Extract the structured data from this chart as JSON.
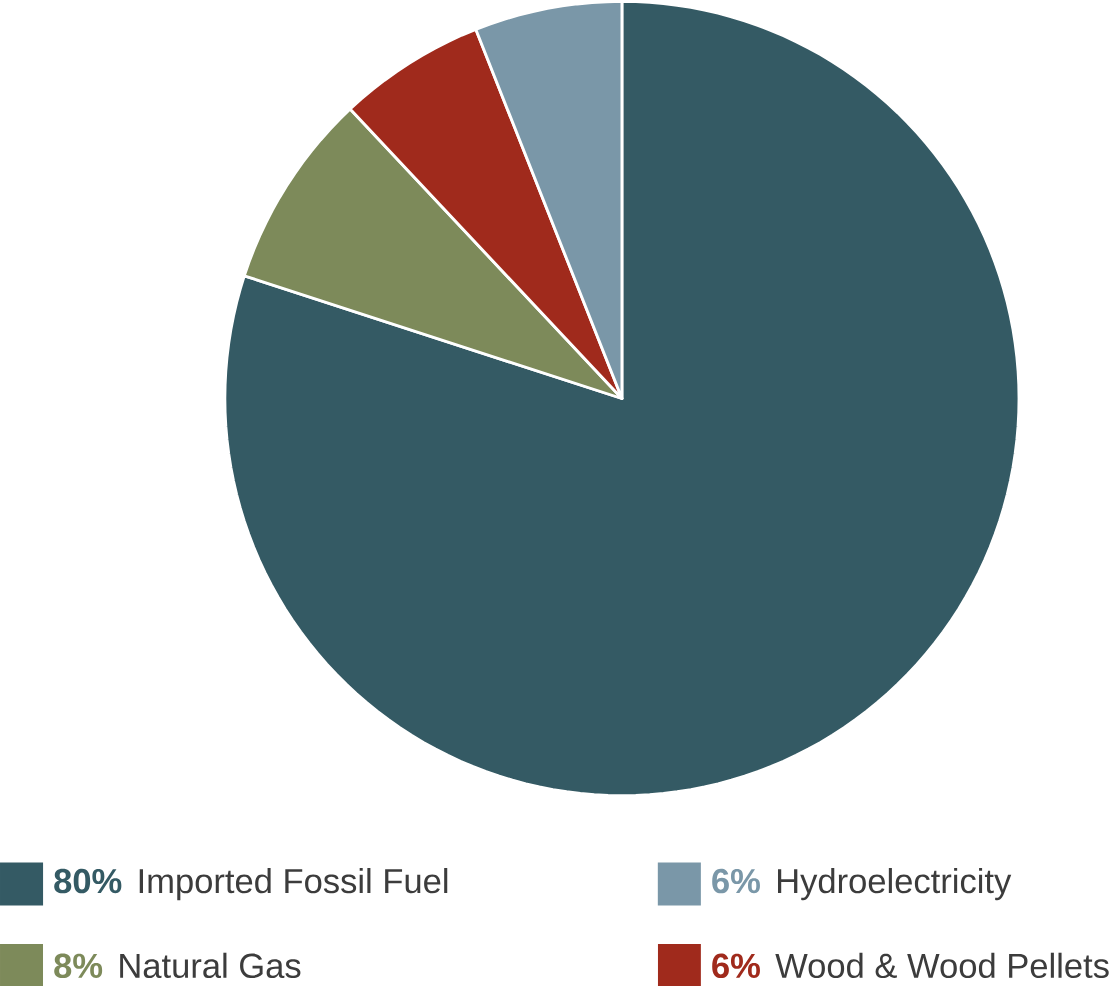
{
  "chart_data": {
    "type": "pie",
    "categories": [
      "Imported Fossil Fuel",
      "Natural Gas",
      "Wood & Wood Pellets",
      "Hydroelectricity"
    ],
    "values": [
      80,
      8,
      6,
      6
    ],
    "colors": [
      "#345a64",
      "#7d8a5a",
      "#a02a1c",
      "#7a97a8"
    ],
    "value_labels": [
      "80%",
      "8%",
      "6%",
      "6%"
    ],
    "legend": "bottom"
  }
}
